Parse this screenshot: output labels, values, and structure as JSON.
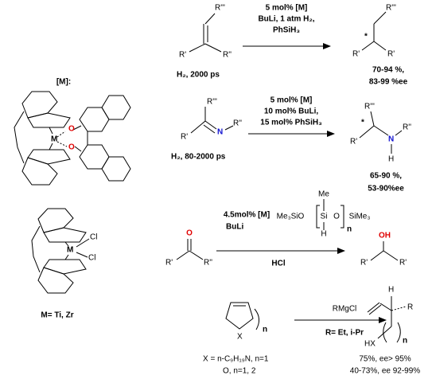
{
  "catalyst": {
    "label": "[M]:",
    "atoms_1": [
      "O",
      "O",
      "M"
    ],
    "atoms_2": [
      "M",
      "Cl",
      "Cl"
    ],
    "metal_note": "M= Ti, Zr"
  },
  "reactions": [
    {
      "reagents": [
        "5 mol% [M]",
        "BuLi, 1 atm H₂,",
        "PhSiH₃"
      ],
      "pressure": "H₂, 2000 ps",
      "substrate_labels": [
        "R'''",
        "R'",
        "R''"
      ],
      "product_labels": [
        "R'''",
        "*",
        "R'",
        "R'"
      ],
      "results": [
        "70-94 %,",
        "83-99 %ee"
      ]
    },
    {
      "reagents": [
        "5 mol% [M]",
        "10 mol% BuLi,",
        "15 mol% PhSiH₃"
      ],
      "pressure": "H₂, 80-2000 ps",
      "substrate_labels": [
        "R'''",
        "R'",
        "N",
        "R''"
      ],
      "product_labels": [
        "R'''",
        "*",
        "R'",
        "N",
        "R''",
        "H"
      ],
      "results": [
        "65-90 %,",
        "53-90%ee"
      ]
    },
    {
      "reagents": [
        "4.5mol% [M]",
        "BuLi"
      ],
      "below": [
        "HCl"
      ],
      "polymer": [
        "Me₃SiO",
        "Me",
        "Si",
        "O",
        "SiMe₃",
        "H",
        "n"
      ],
      "substrate_labels": [
        "O",
        "R'",
        "R''"
      ],
      "product_labels": [
        "OH",
        "R'",
        "R'"
      ]
    },
    {
      "reagents": [
        "RMgCl"
      ],
      "below": [
        "R= Et, i-Pr"
      ],
      "substrate_labels": [
        "X",
        "n"
      ],
      "product_labels": [
        "H",
        "R",
        "HX",
        "n"
      ],
      "notes": [
        "X = n-C₉H₁₉N, n=1",
        "O, n=1, 2"
      ],
      "results": [
        "75%, ee> 95%",
        "40-73%, ee 92-99%"
      ]
    }
  ]
}
